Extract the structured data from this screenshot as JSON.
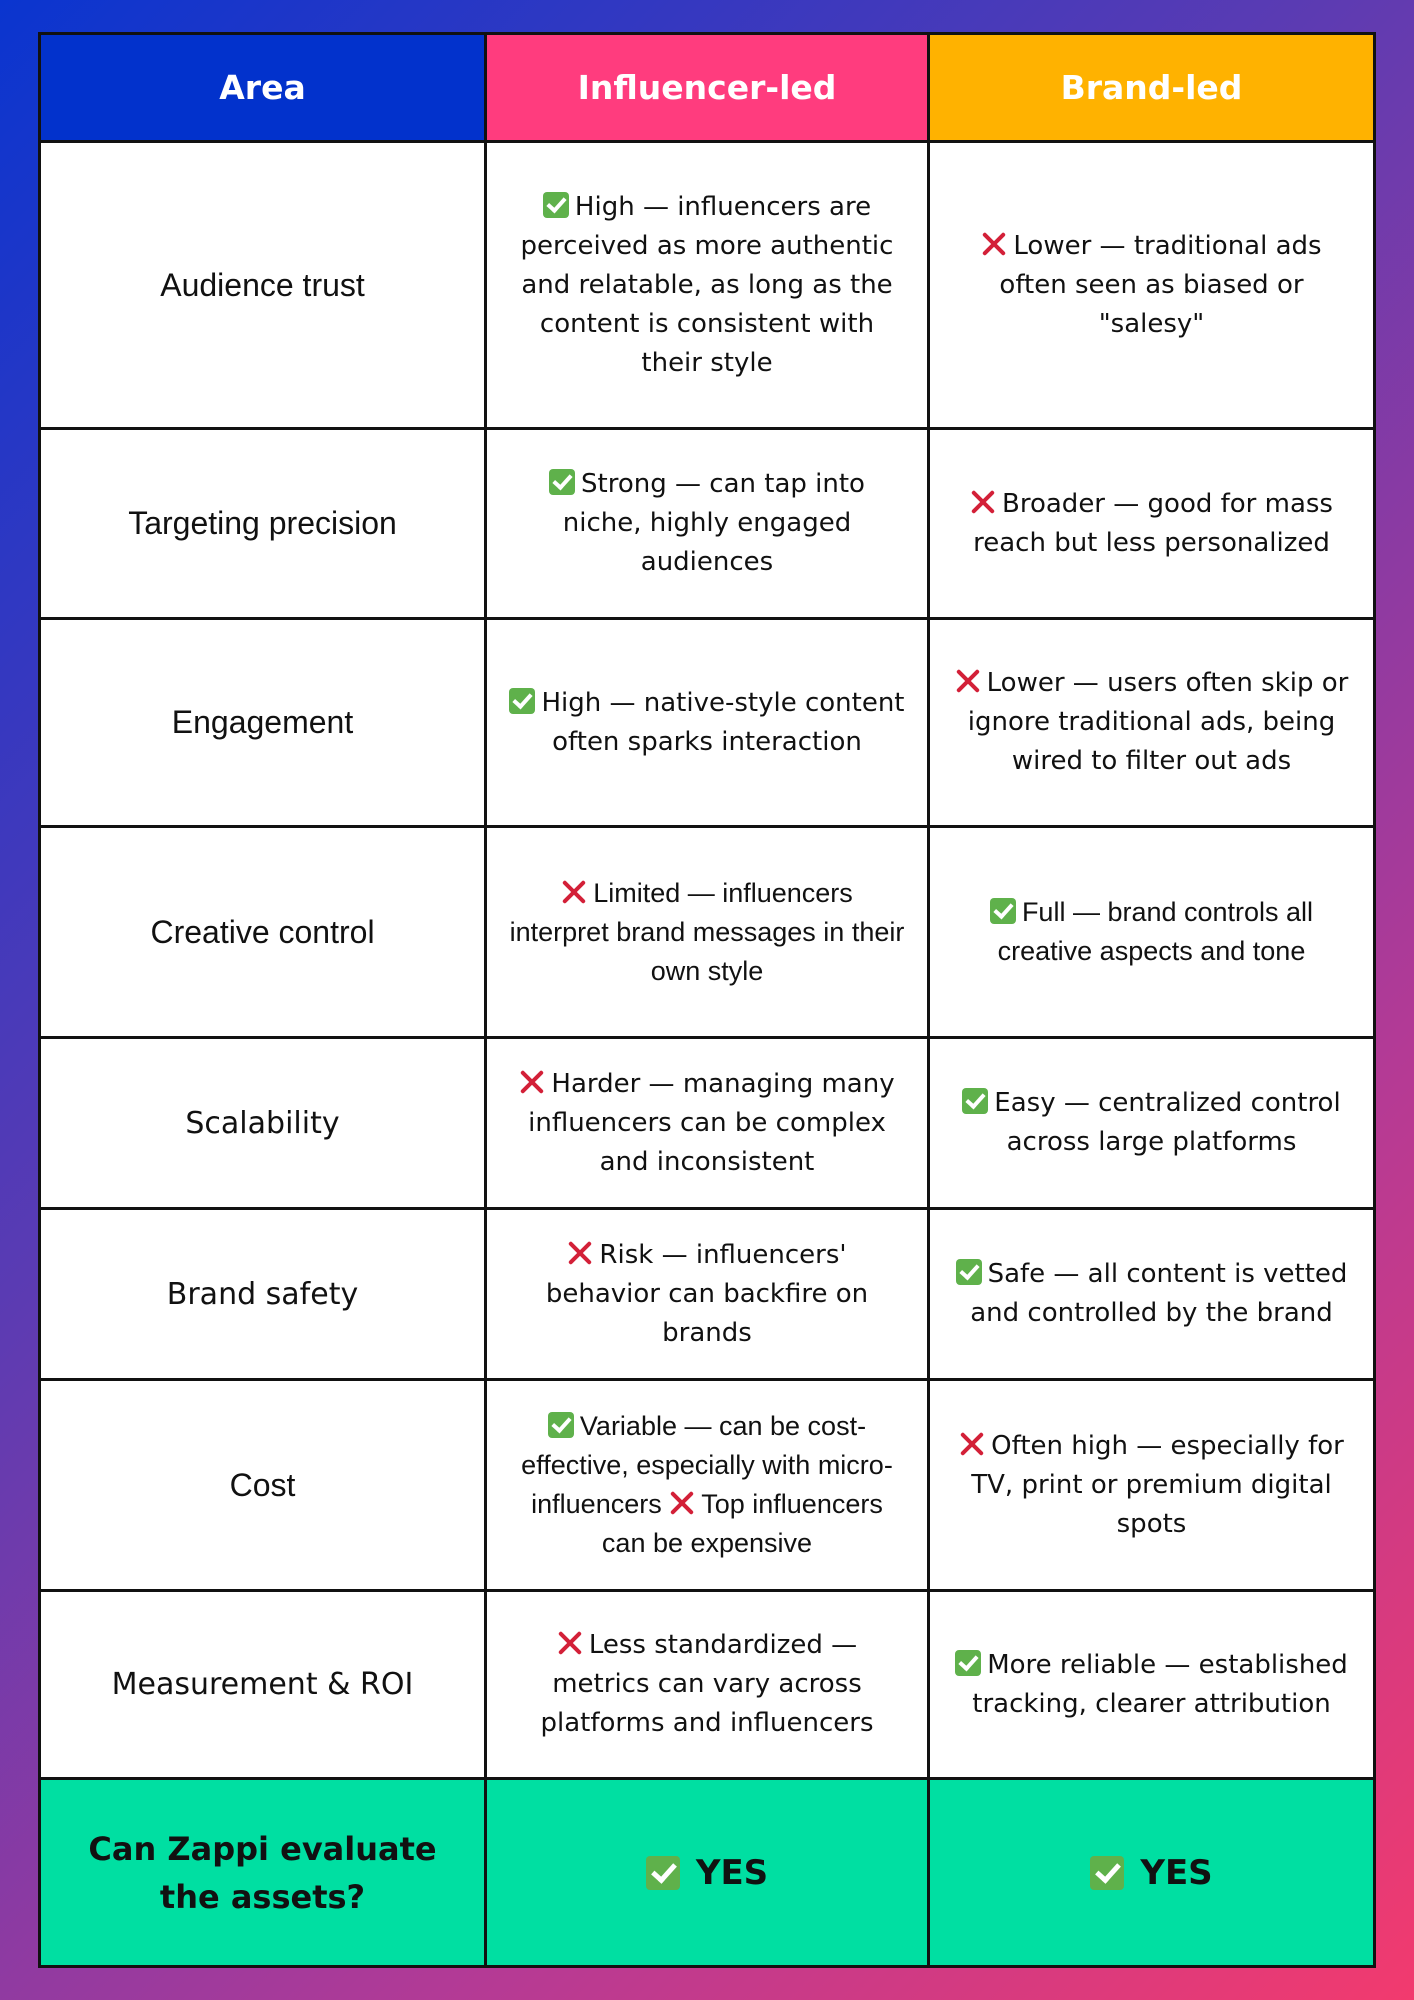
{
  "header": {
    "area": "Area",
    "influencer": "Influencer-led",
    "brand": "Brand-led"
  },
  "colors": {
    "area_header": "#0232cc",
    "influencer_header": "#ff3c7e",
    "brand_header": "#ffb200",
    "footer_row": "#00dfa2",
    "check_icon": "#5fb14b",
    "cross_icon": "#d32038"
  },
  "rows": [
    {
      "area": "Audience trust",
      "influencer": "High — influencers are perceived as more authentic and relatable, as long as the content is consistent with their style",
      "influencer_icon": "check-icon",
      "brand": "Lower — traditional ads often seen as biased or \"salesy\"",
      "brand_icon": "cross-icon"
    },
    {
      "area": "Targeting precision",
      "influencer": "Strong — can tap into niche, highly engaged audiences",
      "influencer_icon": "check-icon",
      "brand": "Broader — good for mass reach but less personalized",
      "brand_icon": "cross-icon"
    },
    {
      "area": "Engagement",
      "influencer": "High — native-style content often sparks interaction",
      "influencer_icon": "check-icon",
      "brand": "Lower — users often skip or ignore traditional ads, being wired to filter out ads",
      "brand_icon": "cross-icon"
    },
    {
      "area": "Creative control",
      "influencer": "Limited — influencers interpret brand messages in their own style",
      "influencer_icon": "cross-icon",
      "brand": "Full — brand controls all creative aspects and tone",
      "brand_icon": "check-icon"
    },
    {
      "area": "Scalability",
      "influencer": "Harder — managing many influencers can be complex and inconsistent",
      "influencer_icon": "cross-icon",
      "brand": "Easy — centralized control across large platforms",
      "brand_icon": "check-icon"
    },
    {
      "area": "Brand safety",
      "influencer": "Risk — influencers' behavior can backfire on brands",
      "influencer_icon": "cross-icon",
      "brand": "Safe — all content is vetted and controlled by the brand",
      "brand_icon": "check-icon"
    },
    {
      "area": "Cost",
      "influencer_part1": "Variable — can be cost-effective, especially with micro-influencers",
      "influencer_part2": "Top influencers can be expensive",
      "influencer_icon": "check-icon",
      "influencer_icon2": "cross-icon",
      "brand": "Often high — especially for TV, print or premium digital spots",
      "brand_icon": "cross-icon"
    },
    {
      "area": "Measurement & ROI",
      "influencer": "Less standardized — metrics can vary across platforms and influencers",
      "influencer_icon": "cross-icon",
      "brand": "More reliable — established tracking, clearer attribution",
      "brand_icon": "check-icon"
    }
  ],
  "footer": {
    "question": "Can Zappi evaluate the assets?",
    "influencer": "YES",
    "brand": "YES"
  }
}
